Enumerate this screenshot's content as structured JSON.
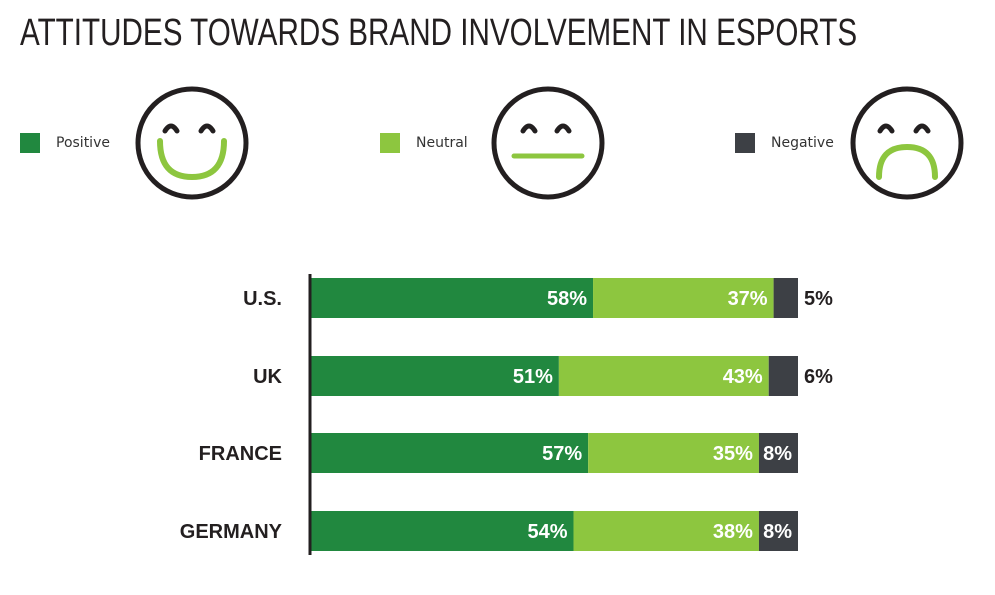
{
  "title": "ATTITUDES TOWARDS BRAND INVOLVEMENT IN ESPORTS",
  "legend": [
    {
      "label": "Positive",
      "color": "#21883f",
      "icon": "smiley-face-icon"
    },
    {
      "label": "Neutral",
      "color": "#8dc63f",
      "icon": "neutral-face-icon"
    },
    {
      "label": "Negative",
      "color": "#3d4045",
      "icon": "frowning-face-icon"
    }
  ],
  "chart_data": {
    "type": "bar",
    "orientation": "horizontal",
    "stacked": true,
    "title": "ATTITUDES TOWARDS BRAND INVOLVEMENT IN ESPORTS",
    "categories": [
      "U.S.",
      "UK",
      "FRANCE",
      "GERMANY"
    ],
    "series": [
      {
        "name": "Positive",
        "color": "#21883f",
        "values": [
          58,
          51,
          57,
          54
        ],
        "labels": [
          "58%",
          "51%",
          "57%",
          "54%"
        ]
      },
      {
        "name": "Neutral",
        "color": "#8dc63f",
        "values": [
          37,
          43,
          35,
          38
        ],
        "labels": [
          "37%",
          "43%",
          "35%",
          "38%"
        ]
      },
      {
        "name": "Negative",
        "color": "#3d4045",
        "values": [
          5,
          6,
          8,
          8
        ],
        "labels": [
          "5%",
          "6%",
          "8%",
          "8%"
        ]
      }
    ],
    "xlim": [
      0,
      100
    ],
    "legend_position": "top"
  }
}
